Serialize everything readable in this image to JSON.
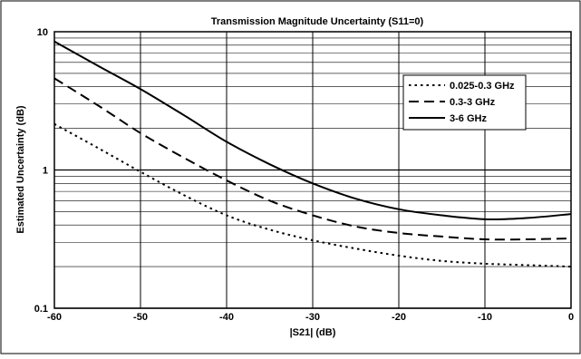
{
  "chart_data": {
    "type": "line",
    "title": "Transmission Magnitude Uncertainty (S11=0)",
    "xlabel": "|S21| (dB)",
    "ylabel": "Estimated Uncertainty (dB)",
    "xlim": [
      -60,
      0
    ],
    "ylim": [
      0.1,
      10
    ],
    "yscale": "log",
    "grid": true,
    "legend_position": "top-right",
    "x_ticks": [
      "-60",
      "-50",
      "-40",
      "-30",
      "-20",
      "-10",
      "0"
    ],
    "y_ticks": [
      "0.1",
      "1",
      "10"
    ],
    "x": [
      -60,
      -55,
      -50,
      -45,
      -40,
      -35,
      -30,
      -25,
      -20,
      -15,
      -10,
      -5,
      0
    ],
    "series": [
      {
        "name": "0.025-0.3 GHz",
        "style": "dotted",
        "values": [
          2.15,
          1.45,
          0.97,
          0.66,
          0.47,
          0.37,
          0.31,
          0.27,
          0.24,
          0.22,
          0.21,
          0.205,
          0.2
        ]
      },
      {
        "name": "0.3-3 GHz",
        "style": "dashed",
        "values": [
          4.6,
          2.95,
          1.85,
          1.23,
          0.84,
          0.6,
          0.47,
          0.39,
          0.35,
          0.33,
          0.315,
          0.315,
          0.32
        ]
      },
      {
        "name": "3-6 GHz",
        "style": "solid",
        "values": [
          8.5,
          5.7,
          3.85,
          2.5,
          1.6,
          1.1,
          0.8,
          0.62,
          0.52,
          0.47,
          0.44,
          0.45,
          0.48
        ]
      }
    ]
  }
}
